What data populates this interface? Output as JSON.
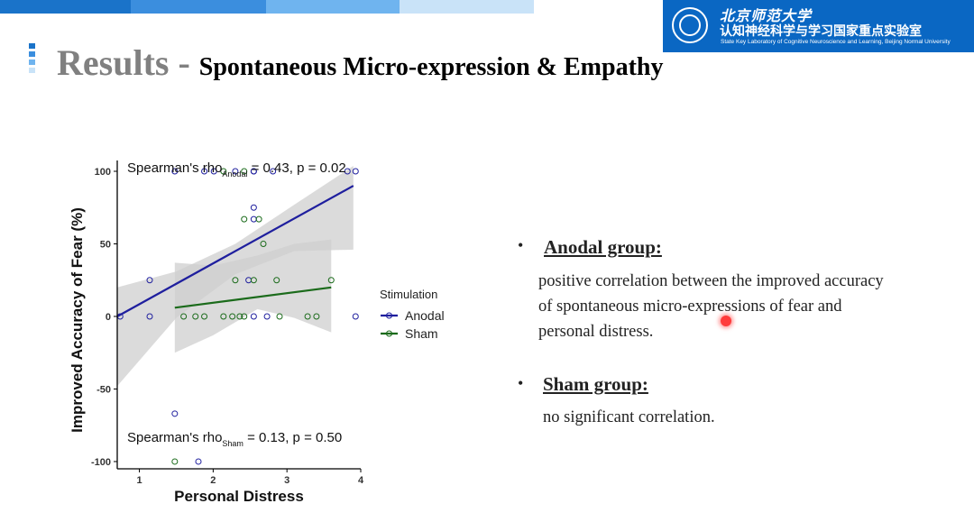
{
  "slide": {
    "title_main": "Results",
    "title_dash": "-",
    "title_sub": "Spontaneous Micro-expression & Empathy"
  },
  "logo": {
    "university": "北京师范大学",
    "lab_cn": "认知神经科学与学习国家重点实验室",
    "lab_en": "State Key Laboratory of Cognitive Neuroscience and Learning, Beijing Normal University",
    "color": "#0a67c3"
  },
  "colors": {
    "topbar": [
      "#1a73c9",
      "#3b8ede",
      "#6fb4ef",
      "#c9e3f8"
    ],
    "anodal": "#1f1f9e",
    "sham": "#1b6b1b",
    "band": "#cfcfcf"
  },
  "bullets": [
    {
      "heading": "Anodal group:",
      "lines": [
        "positive correlation between the improved accuracy",
        "of spontaneous micro-expressions of fear and",
        "personal distress."
      ]
    },
    {
      "heading": "Sham group:",
      "lines": [
        "no significant correlation."
      ]
    }
  ],
  "chart_data": {
    "type": "scatter",
    "xlabel": "Personal Distress",
    "ylabel": "Improved Accuracy of Fear (%)",
    "xlim": [
      0.7,
      4.0
    ],
    "ylim": [
      -105,
      100
    ],
    "xticks": [
      1,
      2,
      3,
      4
    ],
    "yticks": [
      -100,
      -50,
      0,
      50,
      100
    ],
    "legend": {
      "title": "Stimulation",
      "position": "right",
      "entries": [
        "Anodal",
        "Sham"
      ]
    },
    "annotations": [
      {
        "prefix": "Spearman's rho",
        "subscript": "Anodal",
        "suffix": " = 0.43, p = 0.02",
        "position": "top"
      },
      {
        "prefix": "Spearman's rho",
        "subscript": "Sham",
        "suffix": " = 0.13, p = 0.50",
        "position": "bottom"
      }
    ],
    "series": [
      {
        "name": "Anodal",
        "fit": {
          "x": [
            0.7,
            3.9
          ],
          "y": [
            0,
            90
          ]
        },
        "ci_upper": [
          [
            0.7,
            20
          ],
          [
            1.5,
            31
          ],
          [
            2.3,
            50
          ],
          [
            3.1,
            77
          ],
          [
            3.9,
            135
          ]
        ],
        "ci_lower": [
          [
            0.7,
            -48
          ],
          [
            1.5,
            -1
          ],
          [
            2.3,
            29
          ],
          [
            3.1,
            45
          ],
          [
            3.9,
            46
          ]
        ],
        "points": [
          [
            0.74,
            0
          ],
          [
            1.14,
            25
          ],
          [
            1.14,
            0
          ],
          [
            1.48,
            100
          ],
          [
            1.48,
            -67
          ],
          [
            1.88,
            100
          ],
          [
            2.01,
            100
          ],
          [
            2.48,
            25
          ],
          [
            2.55,
            100
          ],
          [
            2.55,
            75
          ],
          [
            2.55,
            67
          ],
          [
            2.55,
            0
          ],
          [
            2.73,
            0
          ],
          [
            2.81,
            100
          ],
          [
            2.55,
            100
          ],
          [
            3.82,
            100
          ],
          [
            3.93,
            100
          ],
          [
            3.93,
            0
          ],
          [
            1.8,
            -100
          ],
          [
            2.3,
            100
          ]
        ]
      },
      {
        "name": "Sham",
        "fit": {
          "x": [
            1.48,
            3.6
          ],
          "y": [
            6,
            20
          ]
        },
        "ci_upper": [
          [
            1.48,
            37
          ],
          [
            2.0,
            35
          ],
          [
            2.6,
            42
          ],
          [
            3.1,
            50
          ],
          [
            3.6,
            53
          ]
        ],
        "ci_lower": [
          [
            1.48,
            -25
          ],
          [
            2.0,
            -13
          ],
          [
            2.6,
            5
          ],
          [
            3.1,
            -1
          ],
          [
            3.6,
            -11
          ]
        ],
        "points": [
          [
            1.48,
            -100
          ],
          [
            1.6,
            0
          ],
          [
            1.76,
            0
          ],
          [
            1.88,
            0
          ],
          [
            2.14,
            100
          ],
          [
            2.14,
            0
          ],
          [
            2.26,
            0
          ],
          [
            2.3,
            25
          ],
          [
            2.42,
            100
          ],
          [
            2.42,
            67
          ],
          [
            2.42,
            0
          ],
          [
            2.55,
            25
          ],
          [
            2.68,
            50
          ],
          [
            2.86,
            25
          ],
          [
            3.28,
            0
          ],
          [
            3.4,
            0
          ],
          [
            3.6,
            25
          ],
          [
            2.36,
            0
          ],
          [
            2.62,
            67
          ],
          [
            2.9,
            0
          ]
        ]
      }
    ]
  }
}
